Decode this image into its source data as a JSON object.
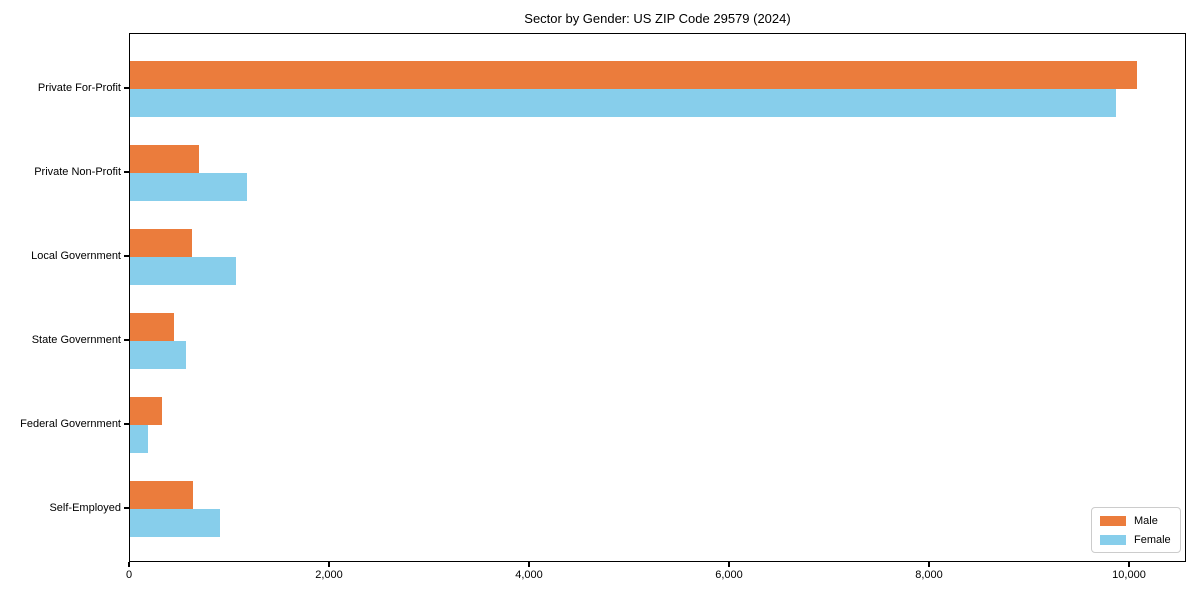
{
  "page": {
    "title": "Sector by Gender: US ZIP Code 29579 (2024)"
  },
  "chart_data": {
    "type": "bar",
    "orientation": "horizontal",
    "title": "Sector by Gender: US ZIP Code 29579 (2024)",
    "categories": [
      "Private For-Profit",
      "Private Non-Profit",
      "Local Government",
      "State Government",
      "Federal Government",
      "Self-Employed"
    ],
    "series": [
      {
        "name": "Male",
        "color": "#EB7C3C",
        "values": [
          10070,
          690,
          615,
          440,
          320,
          630
        ]
      },
      {
        "name": "Female",
        "color": "#87CEEB",
        "values": [
          9860,
          1170,
          1055,
          560,
          175,
          900
        ]
      }
    ],
    "xlabel": "",
    "ylabel": "",
    "xlim": [
      0,
      10570
    ],
    "xticks": [
      0,
      2000,
      4000,
      6000,
      8000,
      10000
    ],
    "xtick_labels": [
      "0",
      "2,000",
      "4,000",
      "6,000",
      "8,000",
      "10,000"
    ],
    "grid": false,
    "legend": {
      "position": "lower right",
      "entries": [
        "Male",
        "Female"
      ]
    }
  }
}
